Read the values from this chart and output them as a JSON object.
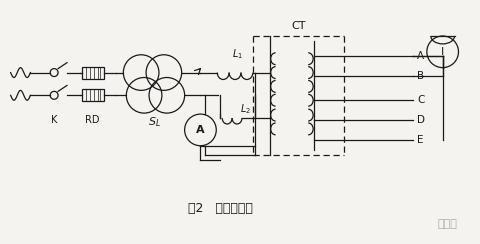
{
  "bg_color": "#f5f3ef",
  "line_color": "#1a1a1a",
  "title": "图2   实验接线图",
  "watermark": "慧享网",
  "ct_label": "CT",
  "figsize": [
    4.8,
    2.44
  ],
  "dpi": 100
}
